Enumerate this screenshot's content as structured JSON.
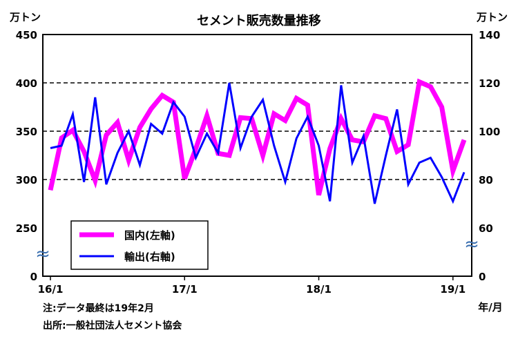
{
  "chart_data": {
    "type": "line",
    "title": "セメント販売数量推移",
    "ylabel_left": "万トン",
    "ylabel_right": "万トン",
    "xlabel": "年/月",
    "x_ticks": [
      "16/1",
      "17/1",
      "18/1",
      "19/1"
    ],
    "yleft_ticks": [
      "450",
      "400",
      "350",
      "300",
      "250",
      "0"
    ],
    "yright_ticks": [
      "140",
      "120",
      "100",
      "80",
      "60",
      "0"
    ],
    "yleft_range": [
      250,
      450
    ],
    "yright_range": [
      60,
      140
    ],
    "axis_break": true,
    "grid": "dashed horizontal",
    "legend_position": "bottom-left",
    "series": [
      {
        "name": "国内(左軸)",
        "axis": "left",
        "color": "#ff00ff",
        "values": [
          289,
          343,
          351,
          329,
          299,
          346,
          359,
          320,
          354,
          373,
          387,
          380,
          301,
          332,
          366,
          327,
          325,
          364,
          363,
          325,
          368,
          361,
          384,
          377,
          284,
          332,
          363,
          341,
          339,
          366,
          363,
          329,
          336,
          401,
          396,
          375,
          309,
          341
        ]
      },
      {
        "name": "輸出(右軸)",
        "axis": "right",
        "color": "#0000ff",
        "values": [
          93,
          94,
          107,
          79,
          114,
          78,
          91,
          100,
          86,
          103,
          99,
          112,
          106,
          89,
          99,
          91,
          120,
          93,
          106,
          113,
          94,
          79,
          97,
          106,
          94,
          71,
          119,
          87,
          98,
          70,
          90,
          109,
          78,
          87,
          89,
          81,
          71,
          83
        ]
      }
    ]
  },
  "notes": {
    "note": "注:データ最終は19年2月",
    "source": "出所:一般社団法人セメント協会"
  }
}
